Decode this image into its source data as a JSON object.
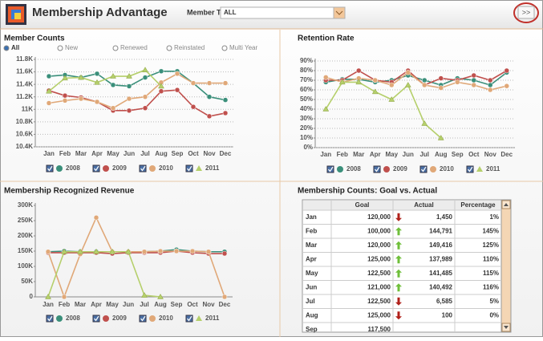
{
  "header": {
    "title": "Membership Advantage",
    "member_type_label": "Member Type",
    "member_type_value": "ALL",
    "expand_button": ">>"
  },
  "filters": [
    "All",
    "New",
    "Renewed",
    "Reinstated",
    "Multi Year"
  ],
  "chart_data": [
    {
      "type": "line",
      "title": "Member Counts",
      "categories": [
        "Jan",
        "Feb",
        "Mar",
        "Apr",
        "May",
        "Jun",
        "Jul",
        "Aug",
        "Sep",
        "Oct",
        "Nov",
        "Dec"
      ],
      "ylim": [
        10400,
        11800
      ],
      "yticks": [
        {
          "value": 10400,
          "label": "10.4K"
        },
        {
          "value": 10600,
          "label": "10.6K"
        },
        {
          "value": 10800,
          "label": "10.8K"
        },
        {
          "value": 11000,
          "label": "11K"
        },
        {
          "value": 11200,
          "label": "11.2K"
        },
        {
          "value": 11400,
          "label": "11.4K"
        },
        {
          "value": 11600,
          "label": "11.6K"
        },
        {
          "value": 11800,
          "label": "11.8K"
        }
      ],
      "grid": true,
      "series": [
        {
          "name": "2008",
          "color": "#3a8f7a",
          "values": [
            11530,
            11550,
            11510,
            11570,
            11390,
            11370,
            11510,
            11610,
            11610,
            11420,
            11200,
            11150
          ]
        },
        {
          "name": "2009",
          "color": "#c0504d",
          "values": [
            11300,
            11220,
            11190,
            11120,
            10980,
            10980,
            11020,
            11290,
            11310,
            11040,
            10890,
            10940
          ]
        },
        {
          "name": "2010",
          "color": "#e0a878",
          "values": [
            11100,
            11140,
            11170,
            11120,
            11020,
            11170,
            11200,
            11430,
            11570,
            11420,
            11420,
            11420
          ]
        },
        {
          "name": "2011",
          "color": "#b5cf6b",
          "values": [
            11290,
            11500,
            11510,
            11430,
            11530,
            11530,
            11630,
            11370,
            null,
            null,
            null,
            null
          ]
        }
      ]
    },
    {
      "type": "line",
      "title": "Retention Rate",
      "categories": [
        "Jan",
        "Feb",
        "Mar",
        "Apr",
        "May",
        "Jun",
        "Jul",
        "Aug",
        "Sep",
        "Oct",
        "Nov",
        "Dec"
      ],
      "ylim": [
        0,
        90
      ],
      "yticks": [
        {
          "value": 0,
          "label": "0%"
        },
        {
          "value": 10,
          "label": "10%"
        },
        {
          "value": 20,
          "label": "20%"
        },
        {
          "value": 30,
          "label": "30%"
        },
        {
          "value": 40,
          "label": "40%"
        },
        {
          "value": 50,
          "label": "50%"
        },
        {
          "value": 60,
          "label": "60%"
        },
        {
          "value": 70,
          "label": "70%"
        },
        {
          "value": 80,
          "label": "80%"
        },
        {
          "value": 90,
          "label": "90%"
        }
      ],
      "grid": true,
      "series": [
        {
          "name": "2008",
          "color": "#3a8f7a",
          "values": [
            68,
            71,
            71,
            68,
            70,
            75,
            70,
            65,
            72,
            70,
            65,
            78
          ]
        },
        {
          "name": "2009",
          "color": "#c0504d",
          "values": [
            70,
            70,
            80,
            70,
            68,
            80,
            65,
            72,
            70,
            75,
            70,
            80
          ]
        },
        {
          "name": "2010",
          "color": "#e0a878",
          "values": [
            73,
            68,
            72,
            70,
            65,
            78,
            65,
            62,
            68,
            65,
            60,
            64
          ]
        },
        {
          "name": "2011",
          "color": "#b5cf6b",
          "values": [
            40,
            68,
            68,
            58,
            50,
            65,
            25,
            10,
            null,
            null,
            null,
            null
          ]
        }
      ]
    },
    {
      "type": "line",
      "title": "Membership Recognized Revenue",
      "categories": [
        "Jan",
        "Feb",
        "Mar",
        "Apr",
        "May",
        "Jun",
        "Jul",
        "Aug",
        "Sep",
        "Oct",
        "Nov",
        "Dec"
      ],
      "ylim": [
        0,
        300000
      ],
      "yticks": [
        {
          "value": 0,
          "label": "0"
        },
        {
          "value": 50000,
          "label": "50K"
        },
        {
          "value": 100000,
          "label": "100K"
        },
        {
          "value": 150000,
          "label": "150K"
        },
        {
          "value": 200000,
          "label": "200K"
        },
        {
          "value": 250000,
          "label": "250K"
        },
        {
          "value": 300000,
          "label": "300K"
        }
      ],
      "grid": false,
      "series": [
        {
          "name": "2008",
          "color": "#3a8f7a",
          "values": [
            148000,
            150000,
            148000,
            148000,
            148000,
            148000,
            148000,
            150000,
            155000,
            150000,
            148000,
            148000
          ]
        },
        {
          "name": "2009",
          "color": "#c0504d",
          "values": [
            145000,
            145000,
            145000,
            145000,
            142000,
            145000,
            145000,
            145000,
            150000,
            145000,
            142000,
            142000
          ]
        },
        {
          "name": "2010",
          "color": "#e0a878",
          "values": [
            148000,
            0,
            140000,
            260000,
            148000,
            148000,
            148000,
            150000,
            150000,
            150000,
            148000,
            0
          ]
        },
        {
          "name": "2011",
          "color": "#b5cf6b",
          "values": [
            0,
            148000,
            148000,
            148000,
            148000,
            148000,
            5000,
            0,
            null,
            null,
            null,
            null
          ]
        }
      ]
    }
  ],
  "table": {
    "title": "Membership Counts: Goal vs. Actual",
    "columns": [
      "Goal",
      "Actual",
      "Percentage"
    ],
    "rows": [
      [
        "Jan",
        "120,000",
        "1,450",
        "1%"
      ],
      [
        "Feb",
        "100,000",
        "144,791",
        "145%"
      ],
      [
        "Mar",
        "120,000",
        "149,416",
        "125%"
      ],
      [
        "Apr",
        "125,000",
        "137,989",
        "110%"
      ],
      [
        "May",
        "122,500",
        "141,485",
        "115%"
      ],
      [
        "Jun",
        "121,000",
        "140,492",
        "116%"
      ],
      [
        "Jul",
        "122,500",
        "6,585",
        "5%"
      ],
      [
        "Aug",
        "125,000",
        "100",
        "0%"
      ],
      [
        "Sep",
        "117,500"
      ]
    ]
  }
}
